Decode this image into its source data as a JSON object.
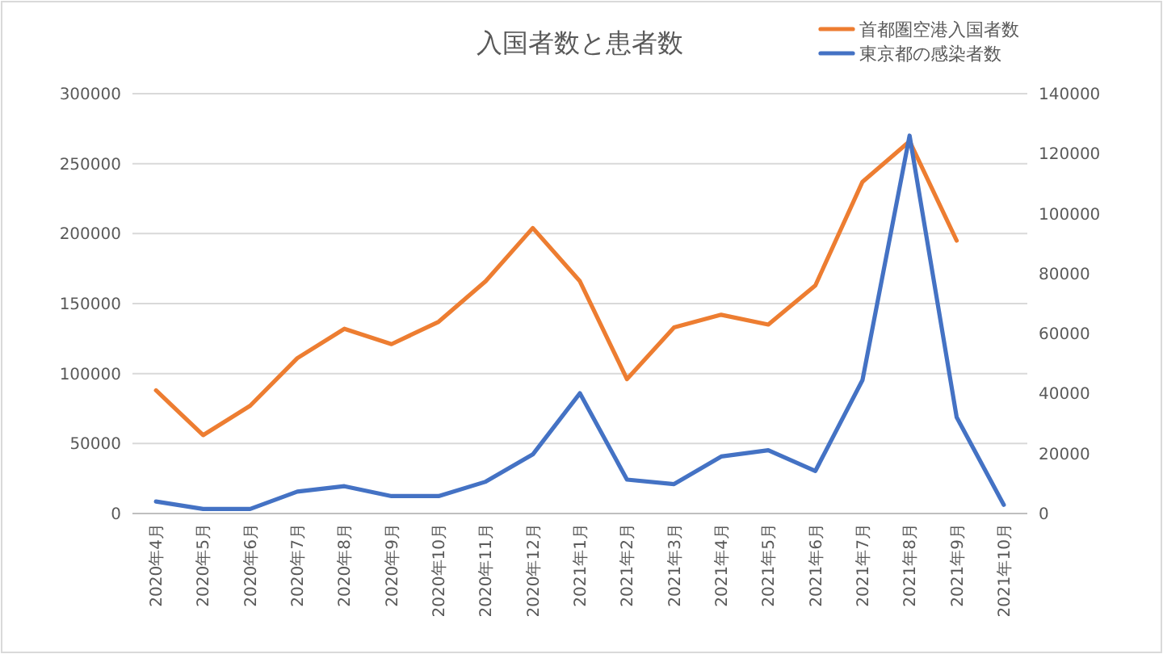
{
  "chart_data": {
    "type": "line",
    "title": "入国者数と患者数",
    "categories": [
      "2020年4月",
      "2020年5月",
      "2020年6月",
      "2020年7月",
      "2020年8月",
      "2020年9月",
      "2020年10月",
      "2020年11月",
      "2020年12月",
      "2021年1月",
      "2021年2月",
      "2021年3月",
      "2021年4月",
      "2021年5月",
      "2021年6月",
      "2021年7月",
      "2021年8月",
      "2021年9月",
      "2021年10月"
    ],
    "series": [
      {
        "name": "首都圏空港入国者数",
        "color": "#ed7d31",
        "values": [
          88000,
          56000,
          77000,
          111000,
          132000,
          121000,
          137000,
          166000,
          204000,
          166000,
          96000,
          133000,
          142000,
          135000,
          163000,
          237000,
          266000,
          195000,
          null
        ]
      },
      {
        "name": "東京都の感染者数",
        "color": "#4472c4",
        "axis": "y2",
        "values": [
          4000,
          1500,
          1500,
          7300,
          9100,
          5800,
          5800,
          10600,
          19700,
          40100,
          11300,
          9800,
          19000,
          21100,
          14200,
          44500,
          126000,
          32100,
          2900
        ]
      }
    ],
    "ylim": [
      0,
      300000
    ],
    "yticks": [
      0,
      50000,
      100000,
      150000,
      200000,
      250000,
      300000
    ],
    "y2lim": [
      0,
      140000
    ],
    "y2ticks": [
      0,
      20000,
      40000,
      60000,
      80000,
      100000,
      120000,
      140000
    ],
    "grid": "y",
    "legend": "top right",
    "line_style": "solid"
  }
}
